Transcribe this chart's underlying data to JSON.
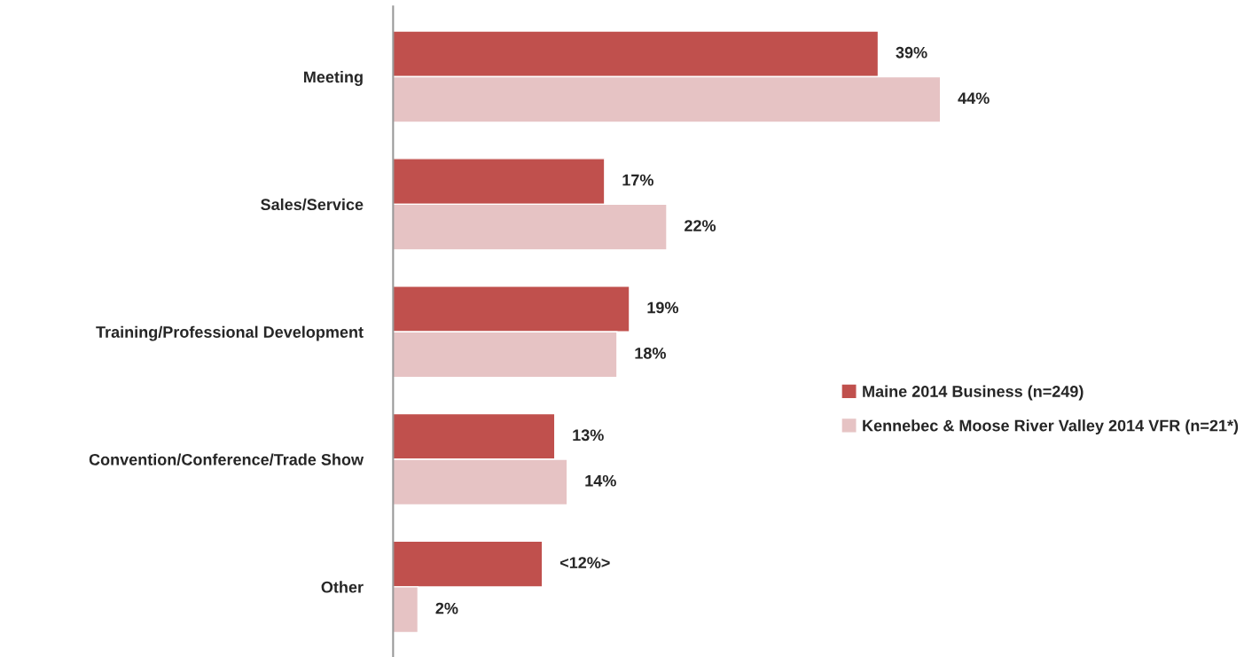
{
  "chart_data": {
    "type": "bar",
    "orientation": "horizontal",
    "categories": [
      "Meeting",
      "Sales/Service",
      "Training/Professional Development",
      "Convention/Conference/Trade Show",
      "Other"
    ],
    "series": [
      {
        "name": "Maine 2014 Business (n=249)",
        "color": "#c0504d",
        "values": [
          39,
          17,
          19,
          13,
          12
        ],
        "value_labels": [
          "39%",
          "17%",
          "19%",
          "13%",
          "<12%>"
        ]
      },
      {
        "name": "Kennebec & Moose River Valley 2014 VFR (n=21*)",
        "color": "#e6c3c4",
        "values": [
          44,
          22,
          18,
          14,
          2
        ],
        "value_labels": [
          "44%",
          "22%",
          "18%",
          "14%",
          "2%"
        ]
      }
    ],
    "tick_labels": "y",
    "grid": false,
    "legend": "right"
  }
}
